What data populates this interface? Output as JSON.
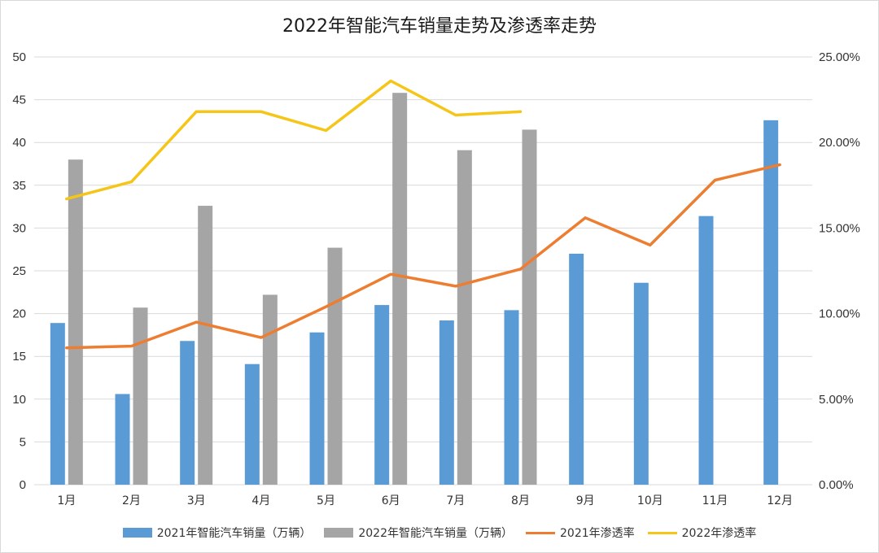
{
  "chart_data": {
    "type": "bar",
    "title": "2022年智能汽车销量走势及渗透率走势",
    "categories": [
      "1月",
      "2月",
      "3月",
      "4月",
      "5月",
      "6月",
      "7月",
      "8月",
      "9月",
      "10月",
      "11月",
      "12月"
    ],
    "y_left": {
      "ylim": [
        0,
        50
      ],
      "ticks": [
        "0",
        "5",
        "10",
        "15",
        "20",
        "25",
        "30",
        "35",
        "40",
        "45",
        "50"
      ]
    },
    "y_right": {
      "ylim": [
        0,
        0.25
      ],
      "ticks": [
        "0.00%",
        "5.00%",
        "10.00%",
        "15.00%",
        "20.00%",
        "25.00%"
      ]
    },
    "grid": true,
    "legend_position": "bottom",
    "series": [
      {
        "name": "2021年智能汽车销量（万辆）",
        "kind": "bar",
        "axis": "left",
        "color": "#5b9bd5",
        "values": [
          18.9,
          10.6,
          16.8,
          14.1,
          17.8,
          21.0,
          19.2,
          20.4,
          27.0,
          23.6,
          31.4,
          42.6
        ]
      },
      {
        "name": "2022年智能汽车销量（万辆）",
        "kind": "bar",
        "axis": "left",
        "color": "#a5a5a5",
        "values": [
          38.0,
          20.7,
          32.6,
          22.2,
          27.7,
          45.8,
          39.1,
          41.5,
          null,
          null,
          null,
          null
        ]
      },
      {
        "name": "2021年渗透率",
        "kind": "line",
        "axis": "right",
        "color": "#ed7d31",
        "values": [
          0.08,
          0.081,
          0.095,
          0.086,
          0.104,
          0.123,
          0.116,
          0.126,
          0.156,
          0.14,
          0.178,
          0.187
        ]
      },
      {
        "name": "2022年渗透率",
        "kind": "line",
        "axis": "right",
        "color": "#f5c518",
        "values": [
          0.167,
          0.177,
          0.218,
          0.218,
          0.207,
          0.236,
          0.216,
          0.218,
          null,
          null,
          null,
          null
        ]
      }
    ]
  }
}
